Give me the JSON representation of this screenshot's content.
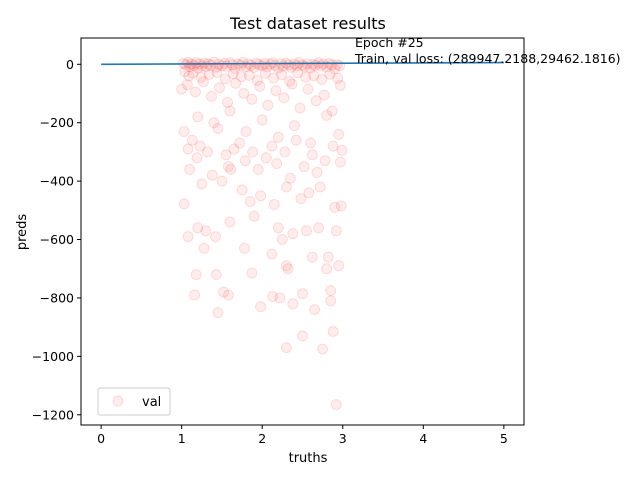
{
  "chart_data": {
    "type": "scatter",
    "title": "Test dataset results",
    "xlabel": "truths",
    "ylabel": "preds",
    "xlim": [
      -0.25,
      5.25
    ],
    "ylim": [
      -1235,
      90
    ],
    "x_ticks": [
      0,
      1,
      2,
      3,
      4,
      5
    ],
    "y_ticks": [
      0,
      -200,
      -400,
      -600,
      -800,
      -1000,
      -1200
    ],
    "grid": false,
    "legend": {
      "entries": [
        "val"
      ],
      "placement": "lower-left"
    },
    "annotations": [
      "Epoch #25",
      "Train, val loss: (289947.2188,29462.1816)"
    ],
    "colors": {
      "points": "#ff0000",
      "line": "#1f77b4"
    },
    "series": [
      {
        "name": "val",
        "marker": "circle",
        "alpha": 0.07,
        "points": [
          [
            1.02,
            3
          ],
          [
            1.05,
            -2
          ],
          [
            1.08,
            6
          ],
          [
            1.1,
            -8
          ],
          [
            1.12,
            2
          ],
          [
            1.15,
            -4
          ],
          [
            1.18,
            5
          ],
          [
            1.2,
            -12
          ],
          [
            1.22,
            1
          ],
          [
            1.25,
            -6
          ],
          [
            1.28,
            4
          ],
          [
            1.3,
            -9
          ],
          [
            1.33,
            2
          ],
          [
            1.36,
            -3
          ],
          [
            1.4,
            7
          ],
          [
            1.43,
            -10
          ],
          [
            1.46,
            0
          ],
          [
            1.5,
            -5
          ],
          [
            1.53,
            3
          ],
          [
            1.56,
            -7
          ],
          [
            1.6,
            5
          ],
          [
            1.63,
            -2
          ],
          [
            1.66,
            -14
          ],
          [
            1.7,
            1
          ],
          [
            1.73,
            -4
          ],
          [
            1.76,
            6
          ],
          [
            1.8,
            -8
          ],
          [
            1.83,
            2
          ],
          [
            1.86,
            -3
          ],
          [
            1.9,
            -11
          ],
          [
            1.93,
            4
          ],
          [
            1.96,
            -1
          ],
          [
            2.0,
            -6
          ],
          [
            2.03,
            3
          ],
          [
            2.06,
            -9
          ],
          [
            2.1,
            0
          ],
          [
            2.13,
            5
          ],
          [
            2.16,
            -4
          ],
          [
            2.2,
            -13
          ],
          [
            2.23,
            2
          ],
          [
            2.26,
            -7
          ],
          [
            2.3,
            4
          ],
          [
            2.33,
            -2
          ],
          [
            2.36,
            -10
          ],
          [
            2.4,
            1
          ],
          [
            2.43,
            -5
          ],
          [
            2.46,
            6
          ],
          [
            2.5,
            -3
          ],
          [
            2.53,
            -8
          ],
          [
            2.56,
            2
          ],
          [
            2.6,
            -12
          ],
          [
            2.63,
            0
          ],
          [
            2.66,
            -4
          ],
          [
            2.7,
            5
          ],
          [
            2.73,
            -6
          ],
          [
            2.76,
            1
          ],
          [
            2.8,
            -9
          ],
          [
            2.83,
            3
          ],
          [
            2.86,
            -2
          ],
          [
            2.9,
            -15
          ],
          [
            2.93,
            -1
          ],
          [
            2.96,
            -5
          ],
          [
            1.04,
            -25
          ],
          [
            1.09,
            -40
          ],
          [
            1.14,
            -30
          ],
          [
            1.24,
            -45
          ],
          [
            1.34,
            -35
          ],
          [
            1.44,
            -28
          ],
          [
            1.54,
            -50
          ],
          [
            1.64,
            -33
          ],
          [
            1.74,
            -42
          ],
          [
            1.84,
            -38
          ],
          [
            1.94,
            -55
          ],
          [
            2.04,
            -31
          ],
          [
            2.14,
            -47
          ],
          [
            2.24,
            -36
          ],
          [
            2.34,
            -58
          ],
          [
            2.44,
            -29
          ],
          [
            2.54,
            -44
          ],
          [
            2.64,
            -39
          ],
          [
            2.74,
            -52
          ],
          [
            2.84,
            -34
          ],
          [
            2.94,
            -48
          ],
          [
            1.07,
            -70
          ],
          [
            1.17,
            -95
          ],
          [
            1.27,
            -60
          ],
          [
            1.37,
            -110
          ],
          [
            1.47,
            -80
          ],
          [
            1.57,
            -130
          ],
          [
            1.67,
            -65
          ],
          [
            1.77,
            -100
          ],
          [
            1.87,
            -120
          ],
          [
            1.97,
            -75
          ],
          [
            2.07,
            -140
          ],
          [
            2.17,
            -90
          ],
          [
            2.27,
            -115
          ],
          [
            2.37,
            -68
          ],
          [
            2.47,
            -150
          ],
          [
            2.57,
            -85
          ],
          [
            2.67,
            -125
          ],
          [
            2.77,
            -105
          ],
          [
            2.87,
            -160
          ],
          [
            2.97,
            -72
          ],
          [
            1.0,
            -85
          ],
          [
            1.2,
            -180
          ],
          [
            1.4,
            -200
          ],
          [
            1.6,
            -160
          ],
          [
            1.8,
            -230
          ],
          [
            2.0,
            -190
          ],
          [
            2.2,
            -250
          ],
          [
            2.4,
            -210
          ],
          [
            2.6,
            -270
          ],
          [
            2.8,
            -175
          ],
          [
            2.95,
            -240
          ],
          [
            1.03,
            -230
          ],
          [
            1.08,
            -290
          ],
          [
            1.13,
            -260
          ],
          [
            1.19,
            -320
          ],
          [
            1.23,
            -280
          ],
          [
            1.32,
            -300
          ],
          [
            1.45,
            -220
          ],
          [
            1.55,
            -310
          ],
          [
            1.58,
            -350
          ],
          [
            1.65,
            -290
          ],
          [
            1.72,
            -270
          ],
          [
            1.79,
            -330
          ],
          [
            1.88,
            -300
          ],
          [
            1.95,
            -360
          ],
          [
            2.05,
            -320
          ],
          [
            2.12,
            -280
          ],
          [
            2.18,
            -340
          ],
          [
            2.28,
            -300
          ],
          [
            2.35,
            -390
          ],
          [
            2.42,
            -260
          ],
          [
            2.52,
            -350
          ],
          [
            2.62,
            -310
          ],
          [
            2.68,
            -370
          ],
          [
            2.78,
            -330
          ],
          [
            2.88,
            -280
          ],
          [
            2.97,
            -335
          ],
          [
            2.99,
            -295
          ],
          [
            1.1,
            -360
          ],
          [
            1.25,
            -410
          ],
          [
            1.38,
            -380
          ],
          [
            1.5,
            -400
          ],
          [
            1.61,
            -360
          ],
          [
            1.75,
            -430
          ],
          [
            1.85,
            -470
          ],
          [
            1.98,
            -450
          ],
          [
            2.15,
            -480
          ],
          [
            2.3,
            -420
          ],
          [
            2.48,
            -460
          ],
          [
            2.58,
            -440
          ],
          [
            2.72,
            -420
          ],
          [
            2.9,
            -490
          ],
          [
            2.98,
            -485
          ],
          [
            1.03,
            -478
          ],
          [
            1.2,
            -560
          ],
          [
            1.3,
            -570
          ],
          [
            1.42,
            -590
          ],
          [
            1.6,
            -540
          ],
          [
            1.9,
            -520
          ],
          [
            2.2,
            -560
          ],
          [
            2.25,
            -600
          ],
          [
            2.38,
            -580
          ],
          [
            2.55,
            -570
          ],
          [
            2.7,
            -560
          ],
          [
            2.92,
            -570
          ],
          [
            1.08,
            -590
          ],
          [
            1.28,
            -630
          ],
          [
            1.78,
            -630
          ],
          [
            2.12,
            -650
          ],
          [
            2.3,
            -690
          ],
          [
            2.62,
            -660
          ],
          [
            2.82,
            -660
          ],
          [
            2.95,
            -690
          ],
          [
            1.18,
            -720
          ],
          [
            1.43,
            -720
          ],
          [
            1.87,
            -715
          ],
          [
            2.32,
            -700
          ],
          [
            2.8,
            -700
          ],
          [
            1.16,
            -790
          ],
          [
            1.52,
            -780
          ],
          [
            1.58,
            -790
          ],
          [
            2.13,
            -795
          ],
          [
            2.22,
            -800
          ],
          [
            2.5,
            -785
          ],
          [
            2.85,
            -775
          ],
          [
            1.45,
            -850
          ],
          [
            1.98,
            -830
          ],
          [
            2.38,
            -820
          ],
          [
            2.65,
            -840
          ],
          [
            2.85,
            -810
          ],
          [
            2.88,
            -915
          ],
          [
            2.3,
            -970
          ],
          [
            2.5,
            -930
          ],
          [
            2.75,
            -975
          ],
          [
            2.92,
            -1165
          ]
        ]
      }
    ],
    "line": {
      "x": [
        0,
        5
      ],
      "y": [
        0,
        6
      ]
    }
  }
}
